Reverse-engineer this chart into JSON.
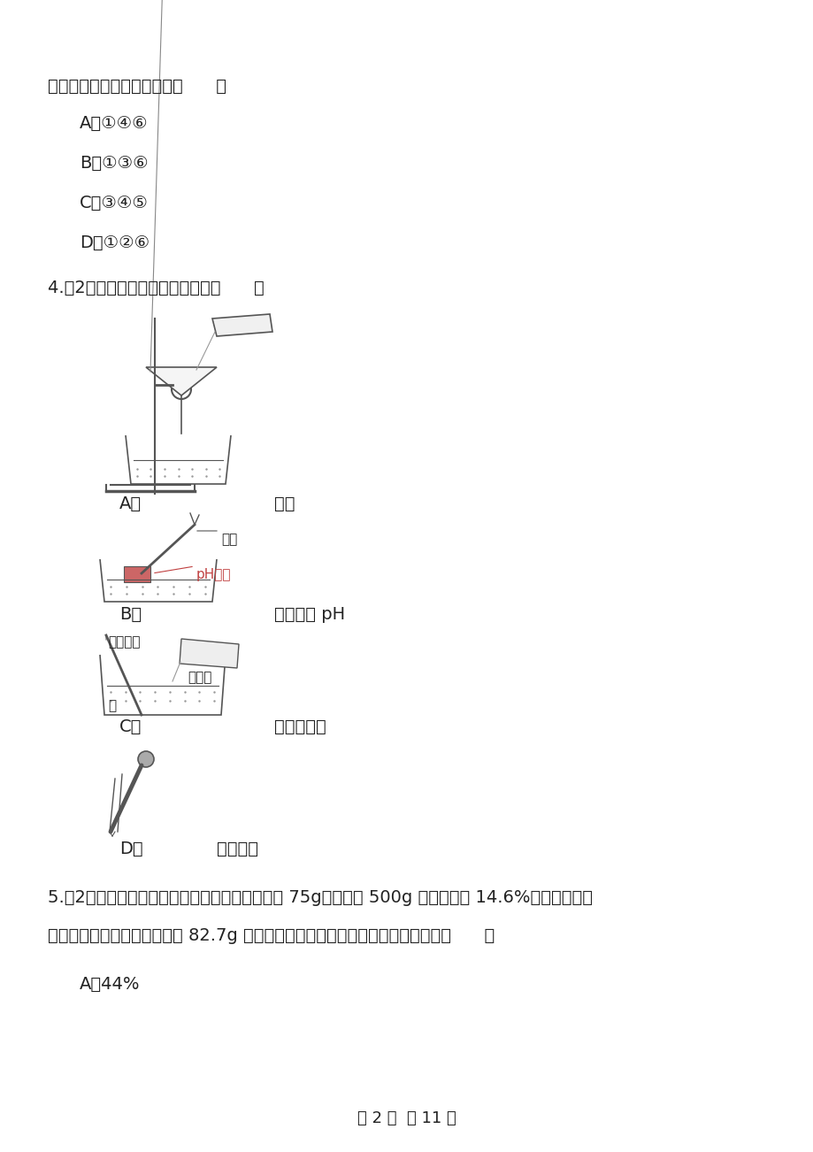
{
  "bg_color": "#ffffff",
  "text_color": "#333333",
  "page_width": 9.2,
  "page_height": 13.02,
  "page_footer": "第 2 页  共 11 页",
  "line1": "烟有可燃性。其中正确的是（      ）",
  "optA": "A．①④⑥",
  "optB": "B．①③⑥",
  "optC": "C．③④⑤",
  "optD": "D．①②⑥",
  "q4": "4.（2分）下列实验操作正确的是（      ）",
  "labelA": "A．",
  "captA": "过滤",
  "labelB": "B．",
  "captB": "测溶液的 pH",
  "labelB_nizi": "镊子",
  "labelB_phzhi": "pH试纸",
  "labelC": "C．",
  "captC": "稀释浓确酸",
  "labelC_buduan": "不断搅拌",
  "labelC_suanye": "浓确酸",
  "labelC_water": "水",
  "labelD": "D．",
  "captD": "滴加液体",
  "q5line1": "5.（2分）实验室有碳酸钔和碳酸馒的固体混合物 75g，使之与 500g 质量分数为 14.6%的盐酸充分反",
  "q5line2": "应，将反应后的溶液蔕干得到 82.7g 固体．则原混合物中金属元素的质量分数为（      ）",
  "q5A": "A．44%"
}
